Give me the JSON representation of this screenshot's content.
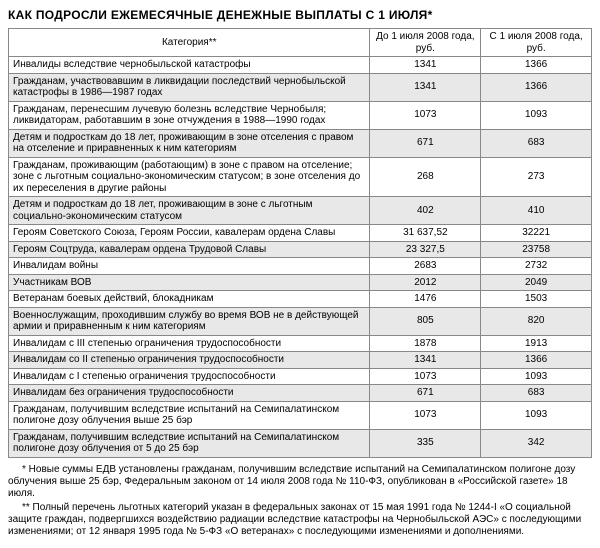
{
  "title": "КАК ПОДРОСЛИ ЕЖЕМЕСЯЧНЫЕ ДЕНЕЖНЫЕ ВЫПЛАТЫ С 1 ИЮЛЯ*",
  "headers": {
    "category": "Категория**",
    "before": "До 1 июля 2008 года, руб.",
    "after": "С 1 июля 2008 года, руб."
  },
  "rows": [
    {
      "cat": "Инвалиды вследствие чернобыльской катастрофы",
      "a": "1341",
      "b": "1366",
      "shade": false
    },
    {
      "cat": "Гражданам, участвовавшим в ликвидации последствий чернобыльской катастрофы в 1986—1987 годах",
      "a": "1341",
      "b": "1366",
      "shade": true
    },
    {
      "cat": "Гражданам, перенесшим лучевую болезнь вследствие Чернобыля; ликвидаторам, работавшим в зоне отчуждения в 1988—1990 годах",
      "a": "1073",
      "b": "1093",
      "shade": false
    },
    {
      "cat": "Детям и подросткам до 18 лет, проживающим в зоне отселения с правом на отселение и приравненных к ним категориям",
      "a": "671",
      "b": "683",
      "shade": true
    },
    {
      "cat": "Гражданам, проживающим (работающим) в зоне с правом на отселение; зоне с льготным социально-экономическим статусом; в зоне отселения до их переселения в другие районы",
      "a": "268",
      "b": "273",
      "shade": false
    },
    {
      "cat": "Детям и подросткам до 18 лет, проживающим в зоне с льготным социально-экономическим статусом",
      "a": "402",
      "b": "410",
      "shade": true
    },
    {
      "cat": "Героям Советского Союза, Героям России, кавалерам ордена Славы",
      "a": "31 637,52",
      "b": "32221",
      "shade": false
    },
    {
      "cat": "Героям Соцтруда, кавалерам ордена Трудовой Славы",
      "a": "23 327,5",
      "b": "23758",
      "shade": true
    },
    {
      "cat": "Инвалидам войны",
      "a": "2683",
      "b": "2732",
      "shade": false
    },
    {
      "cat": "Участникам ВОВ",
      "a": "2012",
      "b": "2049",
      "shade": true
    },
    {
      "cat": "Ветеранам боевых действий, блокадникам",
      "a": "1476",
      "b": "1503",
      "shade": false
    },
    {
      "cat": "Военнослужащим, проходившим службу во время ВОВ не в действующей армии и приравненным к ним категориям",
      "a": "805",
      "b": "820",
      "shade": true
    },
    {
      "cat": "Инвалидам с III степенью ограничения трудоспособности",
      "a": "1878",
      "b": "1913",
      "shade": false
    },
    {
      "cat": "Инвалидам со II степенью ограничения трудоспособности",
      "a": "1341",
      "b": "1366",
      "shade": true
    },
    {
      "cat": "Инвалидам с I степенью ограничения трудоспособности",
      "a": "1073",
      "b": "1093",
      "shade": false
    },
    {
      "cat": "Инвалидам без ограничения трудоспособности",
      "a": "671",
      "b": "683",
      "shade": true
    },
    {
      "cat": "Гражданам, получившим вследствие испытаний на Семипалатинском полигоне дозу облучения выше 25 бэр",
      "a": "1073",
      "b": "1093",
      "shade": false
    },
    {
      "cat": "Гражданам, получившим вследствие испытаний на Семипалатинском полигоне дозу облучения от 5 до 25 бэр",
      "a": "335",
      "b": "342",
      "shade": true
    }
  ],
  "footnotes": [
    "* Новые суммы ЕДВ установлены гражданам, получившим вследствие испытаний на Семипалатинском полигоне дозу облучения выше 25 бэр, Федеральным законом от 14 июля 2008 года № 110-ФЗ, опубликован в «Российской газете» 18 июля.",
    "** Полный перечень льготных категорий указан в федеральных законах от 15 мая 1991 года № 1244-I «О социальной защите граждан, подвергшихся воздействию радиации вследствие катастрофы на Чернобыльской АЭС» с последующими изменениями; от 12 января 1995 года № 5-ФЗ «О ветеранах» с последующими изменениями и дополнениями."
  ]
}
